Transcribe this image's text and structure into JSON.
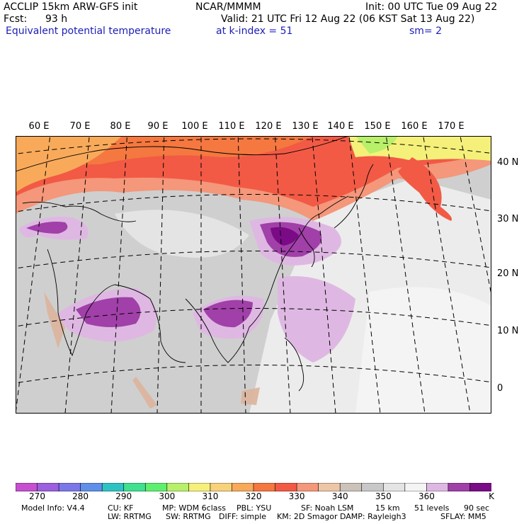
{
  "header": {
    "model_line": "ACCLIP 15km ARW-GFS init",
    "org": "NCAR/MMMM",
    "init": "Init: 00 UTC Tue 09 Aug 22",
    "fcst_label": "Fcst:",
    "fcst_value": "93 h",
    "valid": "Valid: 21 UTC Fri 12 Aug 22 (06 KST Sat 13 Aug 22)",
    "field": "Equivalent potential temperature",
    "level": "at k-index = 51",
    "smooth": "sm= 2"
  },
  "map": {
    "longitude_labels": [
      "60 E",
      "70 E",
      "80 E",
      "90 E",
      "100 E",
      "110 E",
      "120 E",
      "130 E",
      "140 E",
      "150 E",
      "160 E",
      "170 E"
    ],
    "latitude_labels": [
      "40 N",
      "30 N",
      "20 N",
      "10 N",
      "0"
    ]
  },
  "colorbar": {
    "unit": "K",
    "labels": [
      "270",
      "280",
      "290",
      "300",
      "310",
      "320",
      "330",
      "340",
      "350",
      "360"
    ],
    "colors": [
      "#c64fd0",
      "#9b5fe0",
      "#7b77e8",
      "#5f8fe8",
      "#2ec3c3",
      "#3fe08f",
      "#5fef6f",
      "#b8f06a",
      "#f5f07a",
      "#f8d27a",
      "#f8aa5a",
      "#f4783f",
      "#f25a45",
      "#f4977a",
      "#ecc6a6",
      "#cbc3b9",
      "#c8c8c8",
      "#e4e4e4",
      "#f4f4f4",
      "#deb8e2",
      "#a040a8",
      "#7a0a86"
    ]
  },
  "model_info": {
    "line1": [
      "Model Info: V4.4",
      "CU: KF",
      "MP: WDM 6class",
      "PBL: YSU",
      "SF: Noah LSM",
      "15 km",
      "51 levels",
      "90 sec"
    ],
    "line2": [
      "LW: RRTMG",
      "SW: RRTMG",
      "DIFF: simple",
      "KM: 2D Smagor",
      "DAMP: Rayleigh3",
      "SFLAY: MM5"
    ]
  }
}
